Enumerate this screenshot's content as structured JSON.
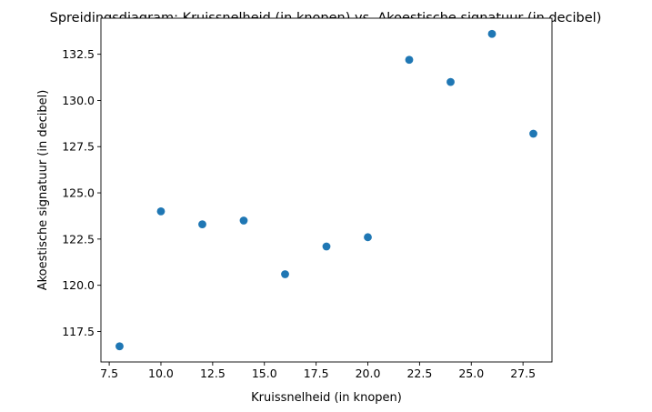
{
  "chart_data": {
    "type": "scatter",
    "title": "Spreidingsdiagram: Kruissnelheid (in knopen) vs. Akoestische signatuur (in decibel)",
    "xlabel": "Kruissnelheid (in knopen)",
    "ylabel": "Akoestische signatuur (in decibel)",
    "x": [
      8,
      10,
      12,
      14,
      16,
      18,
      20,
      22,
      24,
      26,
      28
    ],
    "y": [
      116.7,
      124.0,
      123.3,
      123.5,
      120.6,
      122.1,
      122.6,
      132.2,
      131.0,
      133.6,
      128.2
    ],
    "xlim": [
      7.1,
      28.9
    ],
    "ylim": [
      115.85,
      134.45
    ],
    "xticks": [
      7.5,
      10.0,
      12.5,
      15.0,
      17.5,
      20.0,
      22.5,
      25.0,
      27.5
    ],
    "xtick_labels": [
      "7.5",
      "10.0",
      "12.5",
      "15.0",
      "17.5",
      "20.0",
      "22.5",
      "25.0",
      "27.5"
    ],
    "yticks": [
      117.5,
      120.0,
      122.5,
      125.0,
      127.5,
      130.0,
      132.5
    ],
    "ytick_labels": [
      "117.5",
      "120.0",
      "122.5",
      "125.0",
      "127.5",
      "130.0",
      "132.5"
    ],
    "grid": false,
    "marker_color": "#1f77b4"
  }
}
